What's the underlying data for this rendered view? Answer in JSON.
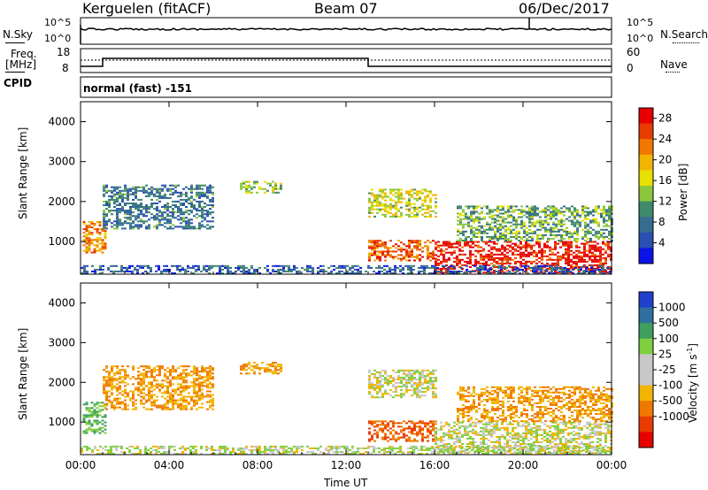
{
  "header": {
    "station": "Kerguelen (fitACF)",
    "beam": "Beam 07",
    "date": "06/Dec/2017"
  },
  "top_panels": {
    "nsky_label": "N.Sky",
    "nsearch_label": "N.Search",
    "freq_label_1": "Freq.",
    "freq_label_2": "[MHz]",
    "nave_label": "Nave",
    "cpid_label": "CPID",
    "cpid_value": "normal (fast) -151",
    "noise_ticks": [
      "10^5",
      "10^0"
    ],
    "freq_ticks": [
      "18",
      "8"
    ],
    "nave_ticks": [
      "60",
      "0"
    ]
  },
  "chart_data": [
    {
      "type": "heatmap",
      "name": "power",
      "ylabel": "Slant Range [km]",
      "xlabel": "",
      "x_tick_labels": [
        "00:00",
        "04:00",
        "08:00",
        "12:00",
        "16:00",
        "20:00",
        "00:00"
      ],
      "y_ticks": [
        1000,
        2000,
        3000,
        4000
      ],
      "ylim": [
        180,
        4500
      ],
      "xlim_hours": [
        0,
        24
      ],
      "colorbar_label": "Power [dB]",
      "colorbar_ticks": [
        4,
        8,
        12,
        16,
        20,
        24,
        28
      ],
      "colorbar_range": [
        0,
        30
      ],
      "colorbar_colors": [
        "#0a14e6",
        "#2a4fb0",
        "#356d8f",
        "#3f8a6a",
        "#8cc63e",
        "#e8e000",
        "#f2b400",
        "#f07800",
        "#e83c00",
        "#e60000"
      ],
      "regions": [
        {
          "t": [
            0.1,
            1.1
          ],
          "r": [
            700,
            1500
          ],
          "value": 22
        },
        {
          "t": [
            1.0,
            6.0
          ],
          "r": [
            1300,
            2400
          ],
          "value": 8
        },
        {
          "t": [
            7.2,
            9.0
          ],
          "r": [
            2200,
            2500
          ],
          "value": 14
        },
        {
          "t": [
            13.0,
            16.0
          ],
          "r": [
            1600,
            2300
          ],
          "value": 16
        },
        {
          "t": [
            13.0,
            16.0
          ],
          "r": [
            500,
            1000
          ],
          "value": 24
        },
        {
          "t": [
            16.0,
            24.0
          ],
          "r": [
            200,
            1000
          ],
          "value": 28
        },
        {
          "t": [
            17.0,
            24.0
          ],
          "r": [
            1000,
            1900
          ],
          "value": 12
        },
        {
          "t": [
            0,
            24
          ],
          "r": [
            180,
            400
          ],
          "value": 6
        }
      ]
    },
    {
      "type": "heatmap",
      "name": "velocity",
      "ylabel": "Slant Range [km]",
      "xlabel": "Time UT",
      "x_tick_labels": [
        "00:00",
        "04:00",
        "08:00",
        "12:00",
        "16:00",
        "20:00",
        "00:00"
      ],
      "y_ticks": [
        1000,
        2000,
        3000,
        4000
      ],
      "ylim": [
        180,
        4500
      ],
      "xlim_hours": [
        0,
        24
      ],
      "colorbar_label": "Velocity [m s^-1]",
      "colorbar_ticks": [
        "1000",
        "500",
        "100",
        "25",
        "-25",
        "-100",
        "-500",
        "-1000"
      ],
      "colorbar_colors": [
        "#1f3fcc",
        "#2f6f9f",
        "#3f9f5f",
        "#7fcf3f",
        "#c8c8c8",
        "#c8c8c8",
        "#f2b400",
        "#f07800",
        "#e83c00",
        "#e60000"
      ],
      "regions": [
        {
          "t": [
            0.1,
            1.1
          ],
          "r": [
            700,
            1500
          ],
          "value": 100
        },
        {
          "t": [
            1.0,
            6.0
          ],
          "r": [
            1300,
            2400
          ],
          "value": -100
        },
        {
          "t": [
            7.2,
            9.0
          ],
          "r": [
            2200,
            2500
          ],
          "value": -100
        },
        {
          "t": [
            13.0,
            16.0
          ],
          "r": [
            1600,
            2300
          ],
          "value": 0
        },
        {
          "t": [
            13.0,
            16.0
          ],
          "r": [
            500,
            1000
          ],
          "value": -500
        },
        {
          "t": [
            16.0,
            24.0
          ],
          "r": [
            200,
            1000
          ],
          "value": 0
        },
        {
          "t": [
            17.0,
            24.0
          ],
          "r": [
            1000,
            1900
          ],
          "value": -100
        },
        {
          "t": [
            0,
            24
          ],
          "r": [
            180,
            400
          ],
          "value": 25
        }
      ]
    }
  ]
}
